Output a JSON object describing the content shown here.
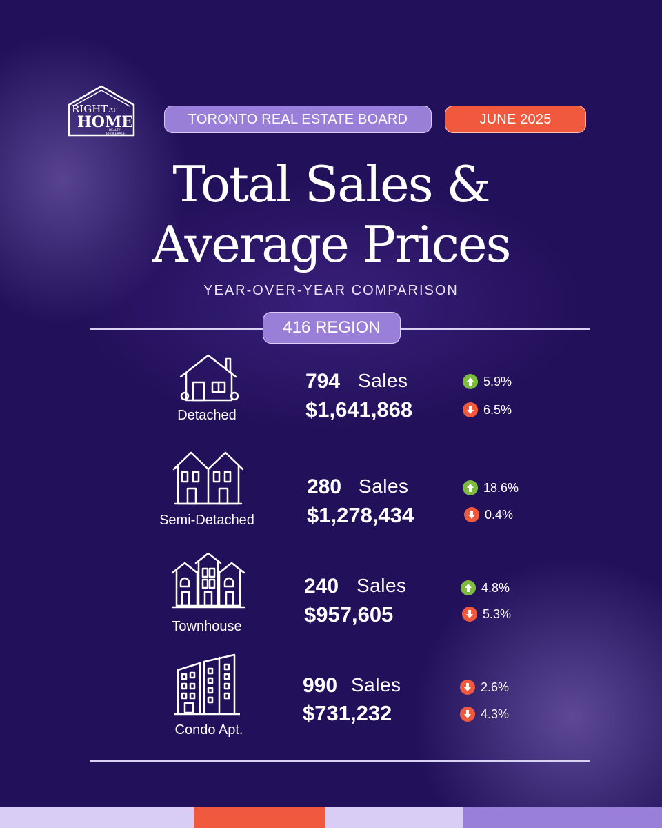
{
  "brand": {
    "logo_line1": "RIGHT",
    "logo_line2": "AT",
    "logo_line3": "HOME",
    "logo_line4": "REALTY",
    "logo_line5": "BROKERAGE"
  },
  "header": {
    "board_label": "TORONTO REAL ESTATE BOARD",
    "date_label": "JUNE 2025"
  },
  "title": {
    "line1": "Total Sales &",
    "line2": "Average Prices",
    "subtitle": "YEAR-OVER-YEAR COMPARISON"
  },
  "region_label": "416 REGION",
  "sales_word": "Sales",
  "categories": [
    {
      "name": "Detached",
      "icon": "detached-house-icon",
      "sales": "794",
      "price": "$1,641,868",
      "sales_change": "5.9%",
      "sales_dir": "up",
      "price_change": "6.5%",
      "price_dir": "down"
    },
    {
      "name": "Semi-Detached",
      "icon": "semi-detached-house-icon",
      "sales": "280",
      "price": "$1,278,434",
      "sales_change": "18.6%",
      "sales_dir": "up",
      "price_change": "0.4%",
      "price_dir": "down"
    },
    {
      "name": "Townhouse",
      "icon": "townhouse-icon",
      "sales": "240",
      "price": "$957,605",
      "sales_change": "4.8%",
      "sales_dir": "up",
      "price_change": "5.3%",
      "price_dir": "down"
    },
    {
      "name": "Condo Apt.",
      "icon": "condo-building-icon",
      "sales": "990",
      "price": "$731,232",
      "sales_change": "2.6%",
      "sales_dir": "down",
      "price_change": "4.3%",
      "price_dir": "down"
    }
  ],
  "colors": {
    "background": "#23105a",
    "lavender": "#9a7fd9",
    "coral": "#f1593e",
    "green": "#7dbb3e"
  }
}
